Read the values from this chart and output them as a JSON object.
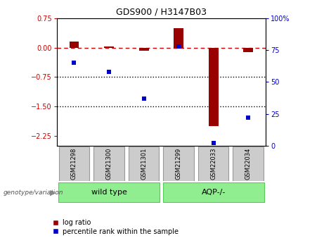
{
  "title": "GDS900 / H3147B03",
  "samples": [
    "GSM21298",
    "GSM21300",
    "GSM21301",
    "GSM21299",
    "GSM22033",
    "GSM22034"
  ],
  "log_ratio": [
    0.15,
    0.03,
    -0.08,
    0.5,
    -2.0,
    -0.12
  ],
  "percentile_rank": [
    65,
    58,
    37,
    78,
    2,
    22
  ],
  "ylim_left": [
    -2.5,
    0.75
  ],
  "ylim_right": [
    0,
    100
  ],
  "yticks_left": [
    0.75,
    0,
    -0.75,
    -1.5,
    -2.25
  ],
  "yticks_right": [
    100,
    75,
    50,
    25,
    0
  ],
  "hlines": [
    -0.75,
    -1.5
  ],
  "groups": [
    {
      "label": "wild type",
      "indices": [
        0,
        1,
        2
      ],
      "color": "#90ee90"
    },
    {
      "label": "AQP-/-",
      "indices": [
        3,
        4,
        5
      ],
      "color": "#90ee90"
    }
  ],
  "log_ratio_color": "#990000",
  "percentile_color": "#0000cc",
  "dashed_line_color": "#cc0000",
  "background_color": "#ffffff",
  "plot_bg": "#ffffff",
  "group_label": "genotype/variation",
  "legend_log_ratio": "log ratio",
  "legend_percentile": "percentile rank within the sample",
  "label_box_color": "#cccccc",
  "label_box_edge": "#999999"
}
